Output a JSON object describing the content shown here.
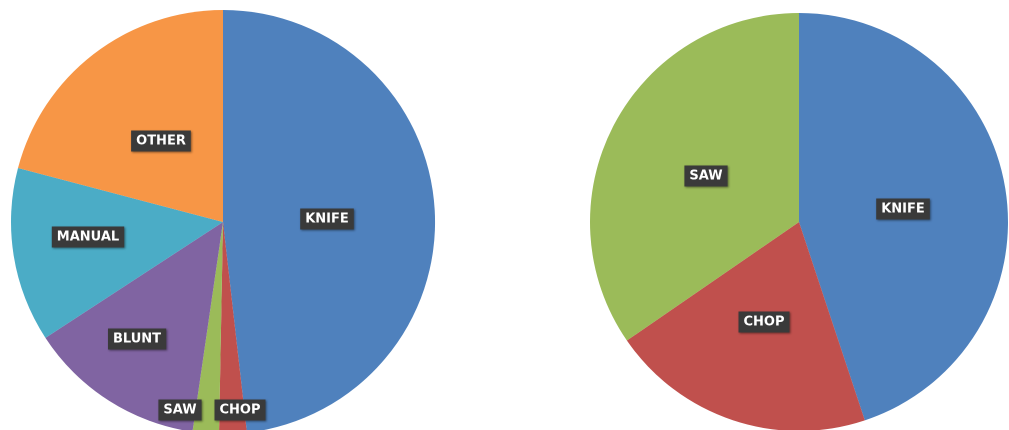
{
  "chart_data": [
    {
      "type": "pie",
      "categories": [
        "KNIFE",
        "CHOP",
        "SAW",
        "BLUNT",
        "MANUAL",
        "OTHER"
      ],
      "values": [
        48.2,
        2.1,
        2.0,
        13.5,
        13.3,
        20.9
      ],
      "colors": [
        "#4f81bd",
        "#c0504d",
        "#9bbb59",
        "#8064a2",
        "#4bacc6",
        "#f79646"
      ],
      "start_angle": "12 o'clock",
      "direction": "clockwise",
      "legend": "none",
      "data_labels": "category names on dark boxes"
    },
    {
      "type": "pie",
      "categories": [
        "KNIFE",
        "CHOP",
        "SAW"
      ],
      "values": [
        44.9,
        20.5,
        34.6
      ],
      "colors": [
        "#4f81bd",
        "#c0504d",
        "#9bbb59"
      ],
      "start_angle": "12 o'clock",
      "direction": "clockwise",
      "legend": "none",
      "data_labels": "category names on dark boxes"
    }
  ]
}
